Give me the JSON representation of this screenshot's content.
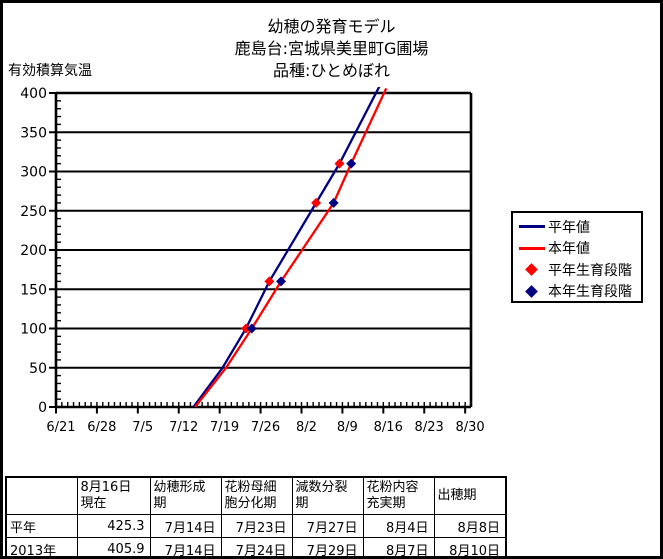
{
  "chart_data": {
    "type": "line",
    "title": "幼穂の発育モデル",
    "subtitle_location": "鹿島台:宮城県美里町G圃場",
    "subtitle_variety": "品種:ひとめぼれ",
    "ylabel": "有効積算気温",
    "xlabel": "",
    "ylim": [
      0,
      400
    ],
    "y_tick_step": 50,
    "y_minor_step": 10,
    "y_tick_labels": [
      "0",
      "50",
      "100",
      "150",
      "200",
      "250",
      "300",
      "350",
      "400"
    ],
    "x_tick_labels": [
      "6/21",
      "6/28",
      "7/5",
      "7/12",
      "7/19",
      "7/26",
      "8/2",
      "8/9",
      "8/16",
      "8/23",
      "8/30"
    ],
    "x_unit": "days after 6/21, daily categories, minor tick each day, major tick each week",
    "grid": "horizontal",
    "legend_position": "right",
    "series": [
      {
        "name": "平年値",
        "kind": "line",
        "color": "#000082",
        "points": [
          [
            23,
            0
          ],
          [
            28,
            50
          ],
          [
            32,
            100
          ],
          [
            36,
            160
          ],
          [
            44,
            260
          ],
          [
            48,
            310
          ],
          [
            56,
            425.3
          ]
        ]
      },
      {
        "name": "本年値",
        "kind": "line",
        "color": "#ff0000",
        "points": [
          [
            23.3,
            0
          ],
          [
            28.6,
            50
          ],
          [
            33,
            100
          ],
          [
            38,
            160
          ],
          [
            47,
            260
          ],
          [
            50,
            310
          ],
          [
            56,
            405.9
          ]
        ]
      },
      {
        "name": "平年生育段階",
        "kind": "diamond",
        "color": "#ff0000",
        "points": [
          [
            32,
            100
          ],
          [
            36,
            160
          ],
          [
            44,
            260
          ],
          [
            48,
            310
          ]
        ],
        "dates": [
          "7/23",
          "7/27",
          "8/4",
          "8/8"
        ]
      },
      {
        "name": "本年生育段階",
        "kind": "diamond",
        "color": "#000082",
        "points": [
          [
            33,
            100
          ],
          [
            38,
            160
          ],
          [
            47,
            260
          ],
          [
            50,
            310
          ]
        ],
        "dates": [
          "7/24",
          "7/29",
          "8/7",
          "8/10"
        ]
      }
    ]
  },
  "legend": {
    "items": [
      {
        "label": "平年値",
        "swatch": "line",
        "color": "#000082"
      },
      {
        "label": "本年値",
        "swatch": "line",
        "color": "#ff0000"
      },
      {
        "label": "平年生育段階",
        "swatch": "diamond",
        "color": "#ff0000"
      },
      {
        "label": "本年生育段階",
        "swatch": "diamond",
        "color": "#000082"
      }
    ]
  },
  "table": {
    "corner": "",
    "headers": [
      {
        "lines": [
          "8月16日",
          "現在"
        ]
      },
      {
        "lines": [
          "幼穂形成",
          "期"
        ]
      },
      {
        "lines": [
          "花粉母細",
          "胞分化期"
        ]
      },
      {
        "lines": [
          "減数分裂",
          "期"
        ]
      },
      {
        "lines": [
          "花粉内容",
          "充実期"
        ]
      },
      {
        "lines": [
          "出穂期"
        ]
      }
    ],
    "rows": [
      {
        "label": "平年",
        "values": [
          "425.3",
          "7月14日",
          "7月23日",
          "7月27日",
          "8月4日",
          "8月8日"
        ]
      },
      {
        "label": "2013年",
        "values": [
          "405.9",
          "7月14日",
          "7月24日",
          "7月29日",
          "8月7日",
          "8月10日"
        ]
      }
    ]
  },
  "colors": {
    "normal_year": "#000082",
    "current_year": "#ff0000",
    "grid": "#000000",
    "background": "#ffffff"
  }
}
